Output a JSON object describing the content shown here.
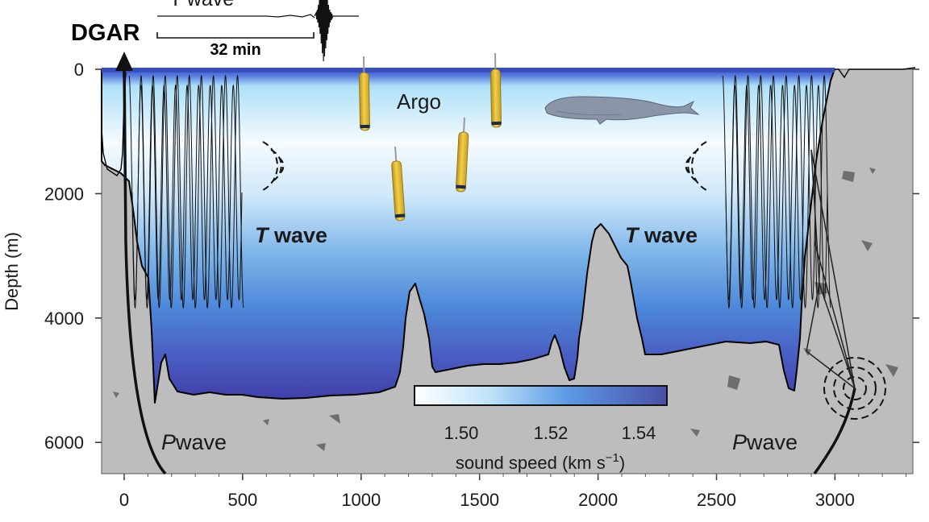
{
  "station": {
    "name": "DGAR"
  },
  "inset": {
    "wave_label": "T wave",
    "scale_label": "32 min"
  },
  "axes": {
    "ylabel": "Depth (m)",
    "xlim": [
      -100,
      3300
    ],
    "ylim": [
      0,
      6500
    ],
    "xticks": [
      "0",
      "500",
      "1000",
      "1500",
      "2000",
      "2500",
      "3000"
    ],
    "yticks": [
      "0",
      "2000",
      "4000",
      "6000"
    ]
  },
  "labels": {
    "argo": "Argo",
    "t_wave_left": {
      "italic": "T",
      "rest": "wave"
    },
    "t_wave_right": {
      "italic": "T",
      "rest": "wave"
    },
    "p_wave_left": {
      "italic": "P",
      "rest": "wave"
    },
    "p_wave_right": {
      "italic": "P",
      "rest": "wave"
    }
  },
  "colorbar": {
    "ticks": [
      "1.50",
      "1.52",
      "1.54"
    ],
    "label": "sound speed (km s",
    "label_sup": "−1",
    "label_end": ")",
    "color_low": "#ffffff",
    "color_high": "#4a4fa8"
  },
  "colors": {
    "seafloor": "#bdbdbd",
    "rock_fragments": "#6e6e6e",
    "argo_float": "#e8c23a",
    "whale": "#8a96a8"
  },
  "icons": [
    "whale-icon",
    "argo-float-icon",
    "seismograph-trace-icon",
    "source-ripple-icon"
  ]
}
